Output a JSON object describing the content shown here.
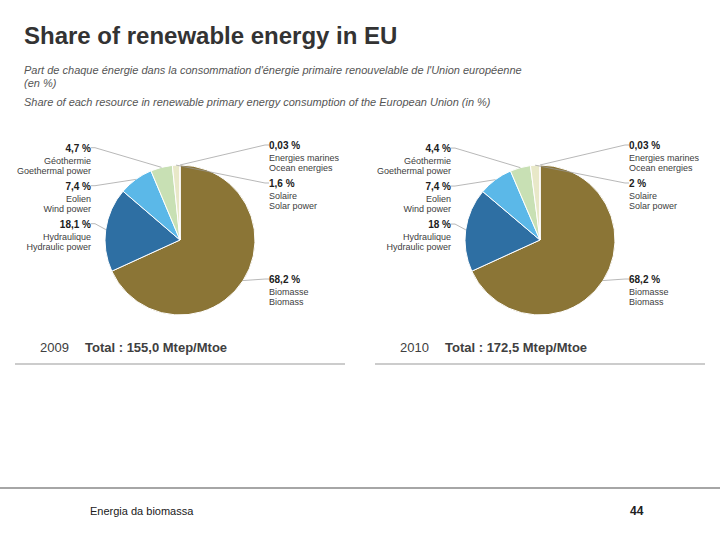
{
  "title": "Share of renewable energy in EU",
  "subtitle": [
    "Part de chaque énergie dans la consommation d'énergie primaire renouvelable de l'Union européenne\n(en %)",
    "Share of each resource in renewable primary energy consumption of the European Union (in %)"
  ],
  "annotations": [
    "Energia da biomassa",
    "44"
  ],
  "chart_data": [
    {
      "type": "pie",
      "title": "2009",
      "subtitle": "Total : 155,0 Mtep/Mtoe",
      "categories": [
        "Biomasse\nBiomass",
        "Hydraulique\nHydraulic power",
        "Eolien\nWind power",
        "Géothermie\nGoethermal power",
        "Solaire\nSolar power",
        "Energies marines\nOcean energies"
      ],
      "values": [
        68.2,
        18.1,
        7.4,
        4.7,
        1.6,
        0.03
      ],
      "value_labels": [
        "68,2 %",
        "18,1 %",
        "7,4 %",
        "4,7 %",
        "1,6 %",
        "0,03 %"
      ],
      "colors": [
        "#8B7536",
        "#2E6FA3",
        "#5BB8E8",
        "#C8E0B4",
        "#E8E8C8",
        "#E86020"
      ],
      "data_labels": true
    },
    {
      "type": "pie",
      "title": "2010",
      "subtitle": "Total : 172,5 Mtep/Mtoe",
      "categories": [
        "Biomasse\nBiomass",
        "Hydraulique\nHydraulic power",
        "Eolien\nWind power",
        "Géothermie\nGoethermal power",
        "Solaire\nSolar power",
        "Energies marines\nOcean energies"
      ],
      "values": [
        68.2,
        18.0,
        7.4,
        4.4,
        2.0,
        0.03
      ],
      "value_labels": [
        "68,2 %",
        "18 %",
        "7,4 %",
        "4,4 %",
        "2 %",
        "0,03 %"
      ],
      "colors": [
        "#8B7536",
        "#2E6FA3",
        "#5BB8E8",
        "#C8E0B4",
        "#E8E8C8",
        "#E86020"
      ],
      "data_labels": true
    }
  ]
}
